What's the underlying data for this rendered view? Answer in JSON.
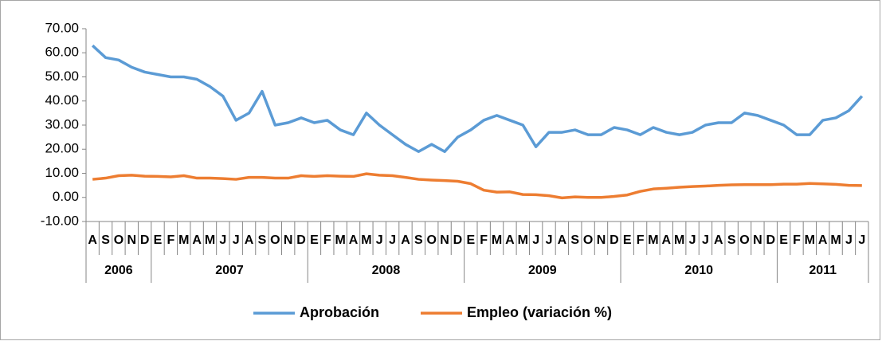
{
  "chart_data": {
    "type": "line",
    "year_groups": [
      {
        "label": "2006",
        "categories": [
          "A",
          "S",
          "O",
          "N",
          "D"
        ]
      },
      {
        "label": "2007",
        "categories": [
          "E",
          "F",
          "M",
          "A",
          "M",
          "J",
          "J",
          "A",
          "S",
          "O",
          "N",
          "D"
        ]
      },
      {
        "label": "2008",
        "categories": [
          "E",
          "F",
          "M",
          "A",
          "M",
          "J",
          "J",
          "A",
          "S",
          "O",
          "N",
          "D"
        ]
      },
      {
        "label": "2009",
        "categories": [
          "E",
          "F",
          "M",
          "A",
          "M",
          "J",
          "J",
          "A",
          "S",
          "O",
          "N",
          "D"
        ]
      },
      {
        "label": "2010",
        "categories": [
          "E",
          "F",
          "M",
          "A",
          "M",
          "J",
          "J",
          "A",
          "S",
          "O",
          "N",
          "D"
        ]
      },
      {
        "label": "2011",
        "categories": [
          "E",
          "F",
          "M",
          "A",
          "M",
          "J",
          "J"
        ]
      }
    ],
    "series": [
      {
        "name": "Aprobación",
        "color": "#5b9bd5",
        "values": [
          63,
          58,
          57,
          54,
          52,
          51,
          50,
          50,
          49,
          46,
          42,
          32,
          35,
          44,
          30,
          31,
          33,
          31,
          32,
          28,
          26,
          35,
          30,
          26,
          22,
          19,
          22,
          19,
          25,
          28,
          32,
          34,
          32,
          30,
          21,
          27,
          27,
          28,
          26,
          26,
          29,
          28,
          26,
          29,
          27,
          26,
          27,
          30,
          31,
          31,
          35,
          34,
          32,
          30,
          26,
          26,
          32,
          33,
          36,
          42
        ]
      },
      {
        "name": "Empleo (variación %)",
        "color": "#ed7d31",
        "values": [
          7.5,
          8,
          9,
          9.2,
          8.8,
          8.7,
          8.5,
          9,
          8,
          8,
          7.8,
          7.5,
          8.3,
          8.3,
          8,
          8,
          9,
          8.7,
          9,
          8.8,
          8.7,
          9.8,
          9.2,
          9,
          8.3,
          7.5,
          7.2,
          7,
          6.7,
          5.7,
          3,
          2.2,
          2.3,
          1.2,
          1.1,
          0.7,
          -0.2,
          0.2,
          0,
          0,
          0.4,
          1,
          2.5,
          3.5,
          3.8,
          4.2,
          4.5,
          4.7,
          5,
          5.2,
          5.3,
          5.3,
          5.3,
          5.5,
          5.5,
          5.8,
          5.6,
          5.4,
          5,
          4.9
        ]
      }
    ],
    "ylim": [
      -10,
      70
    ],
    "yticks": [
      {
        "value": -10,
        "label": "-10.00"
      },
      {
        "value": 0,
        "label": "0.00"
      },
      {
        "value": 10,
        "label": "10.00"
      },
      {
        "value": 20,
        "label": "20.00"
      },
      {
        "value": 30,
        "label": "30.00"
      },
      {
        "value": 40,
        "label": "40.00"
      },
      {
        "value": 50,
        "label": "50.00"
      },
      {
        "value": 60,
        "label": "60.00"
      },
      {
        "value": 70,
        "label": "70.00"
      }
    ],
    "legend": "bottom"
  }
}
